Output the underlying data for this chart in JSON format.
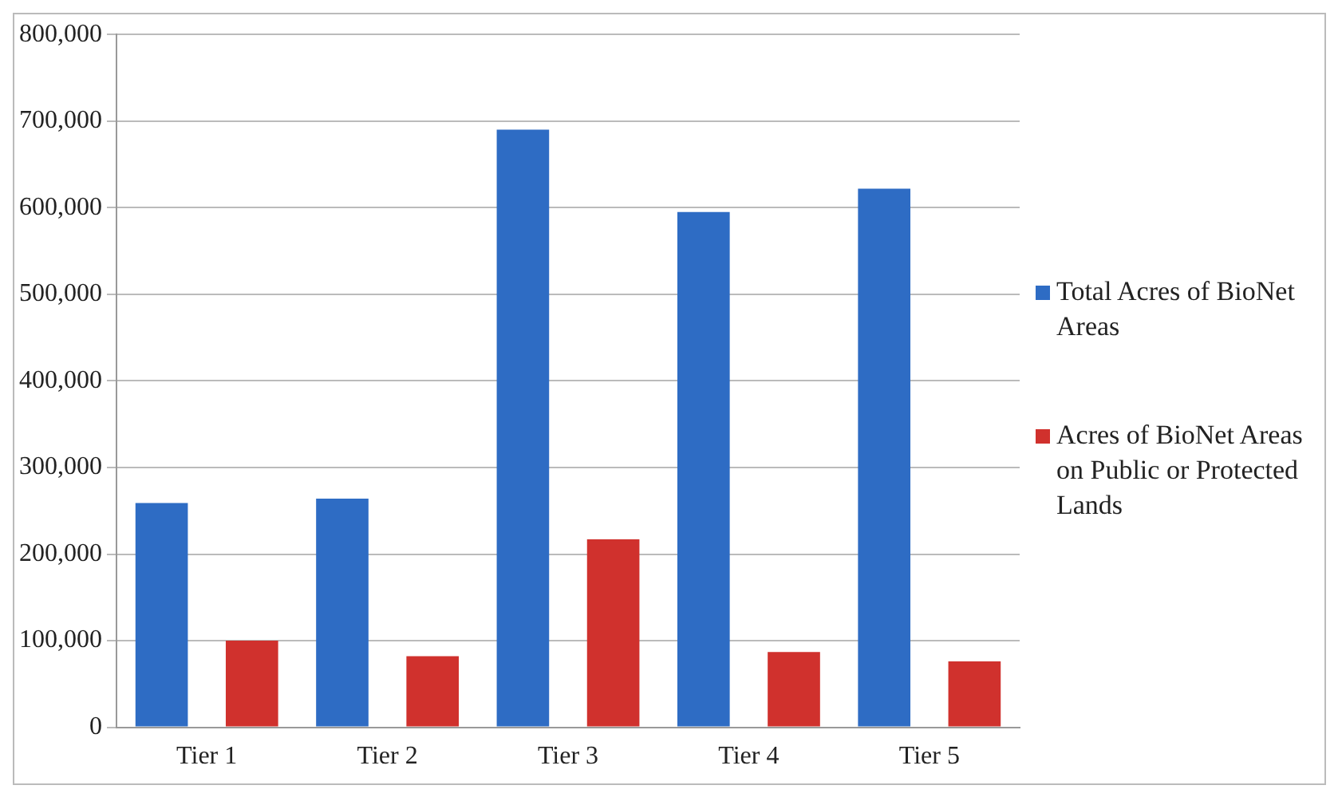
{
  "chart_data": {
    "type": "bar",
    "categories": [
      "Tier 1",
      "Tier 2",
      "Tier 3",
      "Tier 4",
      "Tier 5"
    ],
    "series": [
      {
        "name": "Total Acres of BioNet Areas",
        "color": "#2e6cc4",
        "values": [
          259000,
          264000,
          690000,
          595000,
          622000
        ]
      },
      {
        "name": "Acres of BioNet Areas on Public or Protected Lands",
        "color": "#d0312d",
        "values": [
          100000,
          82000,
          217000,
          87000,
          76000
        ]
      }
    ],
    "ylim": [
      0,
      800000
    ],
    "yticks": [
      0,
      {
        "value": 100000,
        "label": "100,000"
      },
      {
        "value": 200000,
        "label": "200,000"
      },
      {
        "value": 300000,
        "label": "300,000"
      },
      {
        "value": 400000,
        "label": "400,000"
      },
      {
        "value": 500000,
        "label": "500,000"
      },
      {
        "value": 600000,
        "label": "600,000"
      },
      {
        "value": 700000,
        "label": "700,000"
      },
      {
        "value": 800000,
        "label": "800,000"
      }
    ],
    "grid": "y",
    "legend": "right"
  }
}
